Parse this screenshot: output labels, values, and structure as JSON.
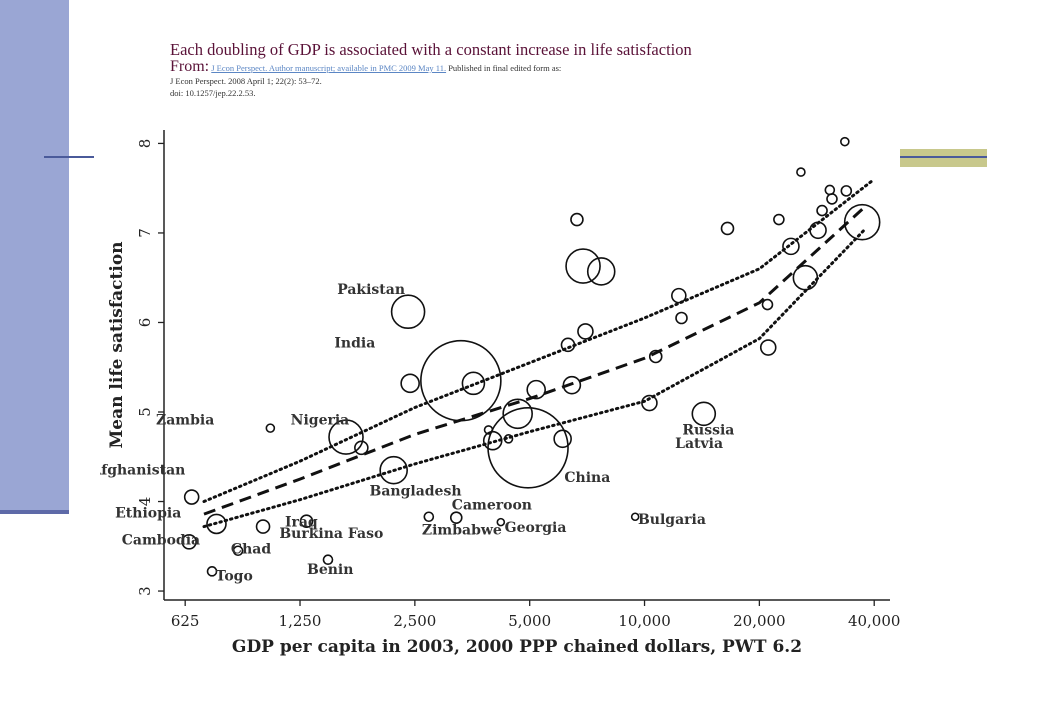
{
  "header": {
    "title": "Each doubling of GDP is associated with a constant increase in life satisfaction",
    "from_label": "From:",
    "source_link": "J Econ Perspect. Author manuscript; available in PMC 2009 May 11.",
    "published": "Published in final edited form as:",
    "citation": "J Econ Perspect. 2008 April 1; 22(2): 53–72.",
    "doi": "doi: 10.1257/jep.22.2.53."
  },
  "chart_data": {
    "type": "scatter",
    "xlabel": "GDP per capita in 2003, 2000 PPP chained dollars, PWT 6.2",
    "ylabel": "Mean life satisfaction",
    "x_scale": "log2",
    "xlim": [
      550,
      44000
    ],
    "ylim": [
      2.9,
      8.15
    ],
    "x_ticks": [
      625,
      1250,
      2500,
      5000,
      10000,
      20000,
      40000
    ],
    "x_tick_labels": [
      "625",
      "1,250",
      "2,500",
      "5,000",
      "10,000",
      "20,000",
      "40,000"
    ],
    "y_ticks": [
      3,
      4,
      5,
      6,
      7,
      8
    ],
    "y_tick_labels": [
      "3",
      "4",
      "5",
      "6",
      "7",
      "8"
    ],
    "points": [
      {
        "x": 3300,
        "y": 5.35,
        "size": 80
      },
      {
        "x": 4950,
        "y": 4.6,
        "size": 80
      },
      {
        "x": 2400,
        "y": 6.12,
        "size": 33
      },
      {
        "x": 1650,
        "y": 4.72,
        "size": 34
      },
      {
        "x": 2200,
        "y": 4.35,
        "size": 27
      },
      {
        "x": 650,
        "y": 4.05,
        "size": 14
      },
      {
        "x": 755,
        "y": 3.75,
        "size": 19
      },
      {
        "x": 640,
        "y": 3.55,
        "size": 14
      },
      {
        "x": 1300,
        "y": 3.78,
        "size": 12
      },
      {
        "x": 1000,
        "y": 3.72,
        "size": 13
      },
      {
        "x": 860,
        "y": 3.45,
        "size": 9
      },
      {
        "x": 735,
        "y": 3.22,
        "size": 9
      },
      {
        "x": 1480,
        "y": 3.35,
        "size": 9
      },
      {
        "x": 1810,
        "y": 4.6,
        "size": 13
      },
      {
        "x": 1045,
        "y": 4.82,
        "size": 8
      },
      {
        "x": 2720,
        "y": 3.83,
        "size": 9
      },
      {
        "x": 3210,
        "y": 3.82,
        "size": 11
      },
      {
        "x": 4200,
        "y": 3.77,
        "size": 7
      },
      {
        "x": 9450,
        "y": 3.83,
        "size": 7
      },
      {
        "x": 6900,
        "y": 6.63,
        "size": 34
      },
      {
        "x": 7700,
        "y": 6.57,
        "size": 27
      },
      {
        "x": 3560,
        "y": 5.32,
        "size": 22
      },
      {
        "x": 4650,
        "y": 4.98,
        "size": 29
      },
      {
        "x": 4000,
        "y": 4.68,
        "size": 18
      },
      {
        "x": 5200,
        "y": 5.25,
        "size": 18
      },
      {
        "x": 6100,
        "y": 4.7,
        "size": 17
      },
      {
        "x": 6450,
        "y": 5.3,
        "size": 17
      },
      {
        "x": 6300,
        "y": 5.75,
        "size": 13
      },
      {
        "x": 7000,
        "y": 5.9,
        "size": 15
      },
      {
        "x": 10300,
        "y": 5.1,
        "size": 15
      },
      {
        "x": 10700,
        "y": 5.62,
        "size": 12
      },
      {
        "x": 12300,
        "y": 6.3,
        "size": 14
      },
      {
        "x": 14300,
        "y": 4.98,
        "size": 23
      },
      {
        "x": 21100,
        "y": 5.72,
        "size": 15
      },
      {
        "x": 26400,
        "y": 6.5,
        "size": 24
      },
      {
        "x": 24200,
        "y": 6.85,
        "size": 16
      },
      {
        "x": 28500,
        "y": 7.03,
        "size": 16
      },
      {
        "x": 37200,
        "y": 7.12,
        "size": 35
      },
      {
        "x": 6650,
        "y": 7.15,
        "size": 12
      },
      {
        "x": 16500,
        "y": 7.05,
        "size": 12
      },
      {
        "x": 31000,
        "y": 7.38,
        "size": 10
      },
      {
        "x": 33800,
        "y": 7.47,
        "size": 10
      },
      {
        "x": 30600,
        "y": 7.48,
        "size": 9
      },
      {
        "x": 22500,
        "y": 7.15,
        "size": 10
      },
      {
        "x": 29200,
        "y": 7.25,
        "size": 10
      },
      {
        "x": 25700,
        "y": 7.68,
        "size": 8
      },
      {
        "x": 33500,
        "y": 8.02,
        "size": 8
      },
      {
        "x": 12500,
        "y": 6.05,
        "size": 11
      },
      {
        "x": 21000,
        "y": 6.2,
        "size": 10
      },
      {
        "x": 2430,
        "y": 5.32,
        "size": 18
      },
      {
        "x": 4400,
        "y": 4.7,
        "size": 8
      },
      {
        "x": 3900,
        "y": 4.8,
        "size": 8
      }
    ],
    "fit_line": [
      [
        700,
        3.86
      ],
      [
        1250,
        4.25
      ],
      [
        2500,
        4.75
      ],
      [
        5000,
        5.15
      ],
      [
        10000,
        5.6
      ],
      [
        20000,
        6.22
      ],
      [
        38000,
        7.3
      ]
    ],
    "ci_upper": [
      [
        700,
        4.0
      ],
      [
        1250,
        4.45
      ],
      [
        2500,
        5.05
      ],
      [
        5000,
        5.55
      ],
      [
        10000,
        6.05
      ],
      [
        20000,
        6.6
      ],
      [
        40000,
        7.6
      ]
    ],
    "ci_lower": [
      [
        700,
        3.72
      ],
      [
        1250,
        4.02
      ],
      [
        2500,
        4.42
      ],
      [
        5000,
        4.78
      ],
      [
        10000,
        5.12
      ],
      [
        20000,
        5.82
      ],
      [
        38000,
        7.05
      ]
    ],
    "annotations": [
      {
        "text": "Pakistan",
        "x": 1920,
        "y": 6.32
      },
      {
        "text": "India",
        "x": 1740,
        "y": 5.72
      },
      {
        "text": "Zambia",
        "x": 625,
        "y": 4.86
      },
      {
        "text": "Nigeria",
        "x": 1410,
        "y": 4.86
      },
      {
        "text": "Afghanistan",
        "x": 470,
        "y": 4.3
      },
      {
        "text": "Ethiopia",
        "x": 500,
        "y": 3.82
      },
      {
        "text": "Cambodia",
        "x": 540,
        "y": 3.52
      },
      {
        "text": "Chad",
        "x": 930,
        "y": 3.42
      },
      {
        "text": "Togo",
        "x": 840,
        "y": 3.12
      },
      {
        "text": "Iraq",
        "x": 1260,
        "y": 3.72
      },
      {
        "text": "Burkina Faso",
        "x": 1510,
        "y": 3.59
      },
      {
        "text": "Benin",
        "x": 1500,
        "y": 3.19
      },
      {
        "text": "Bangladesh",
        "x": 2510,
        "y": 4.07
      },
      {
        "text": "Cameroon",
        "x": 3980,
        "y": 3.91
      },
      {
        "text": "Zimbabwe",
        "x": 3320,
        "y": 3.63
      },
      {
        "text": "Georgia",
        "x": 5180,
        "y": 3.66
      },
      {
        "text": "China",
        "x": 7080,
        "y": 4.22
      },
      {
        "text": "Bulgaria",
        "x": 11800,
        "y": 3.75
      },
      {
        "text": "Russia",
        "x": 14700,
        "y": 4.75
      },
      {
        "text": "Latvia",
        "x": 13900,
        "y": 4.6
      }
    ]
  }
}
